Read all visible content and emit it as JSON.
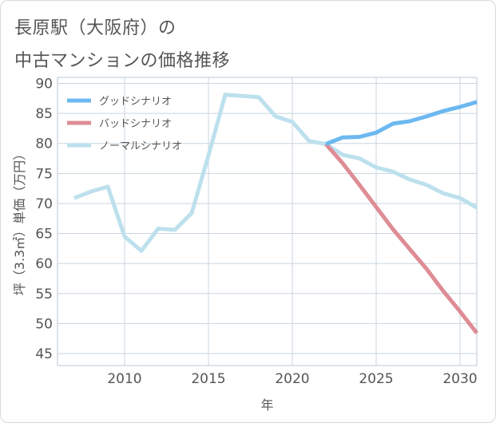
{
  "title_line1": "長原駅（大阪府）の",
  "title_line2": "中古マンションの価格推移",
  "chart_data": {
    "type": "line",
    "xlabel": "年",
    "ylabel": "坪（3.3㎡）単価（万円）",
    "xlim": [
      2006,
      2031
    ],
    "ylim": [
      43,
      91
    ],
    "x_ticks": [
      2010,
      2015,
      2020,
      2025,
      2030
    ],
    "y_ticks": [
      45,
      50,
      55,
      60,
      65,
      70,
      75,
      80,
      85,
      90
    ],
    "grid": true,
    "legend_position": "top-left",
    "series": [
      {
        "name": "グッドシナリオ",
        "color": "#6cb8f0",
        "x": [
          2022,
          2023,
          2024,
          2025,
          2026,
          2027,
          2028,
          2029,
          2030,
          2031
        ],
        "y": [
          79.9,
          81.0,
          81.1,
          81.8,
          83.3,
          83.7,
          84.5,
          85.4,
          86.1,
          86.9
        ]
      },
      {
        "name": "バッドシナリオ",
        "color": "#de8c95",
        "x": [
          2022,
          2023,
          2024,
          2025,
          2026,
          2027,
          2028,
          2029,
          2030,
          2031
        ],
        "y": [
          79.9,
          76.7,
          73.1,
          69.4,
          65.7,
          62.4,
          59.1,
          55.4,
          52.0,
          48.4
        ]
      },
      {
        "name": "ノーマルシナリオ",
        "color": "#bde0ed",
        "x": [
          2007,
          2008,
          2009,
          2010,
          2011,
          2012,
          2013,
          2014,
          2015,
          2016,
          2017,
          2018,
          2019,
          2020,
          2021,
          2022,
          2023,
          2024,
          2025,
          2026,
          2027,
          2028,
          2029,
          2030,
          2031
        ],
        "y": [
          70.9,
          72.0,
          72.8,
          64.5,
          62.1,
          65.8,
          65.6,
          68.4,
          78.0,
          88.1,
          87.9,
          87.7,
          84.5,
          83.6,
          80.4,
          79.9,
          78.1,
          77.5,
          76.0,
          75.3,
          74.0,
          73.1,
          71.7,
          70.9,
          69.3
        ]
      }
    ]
  }
}
